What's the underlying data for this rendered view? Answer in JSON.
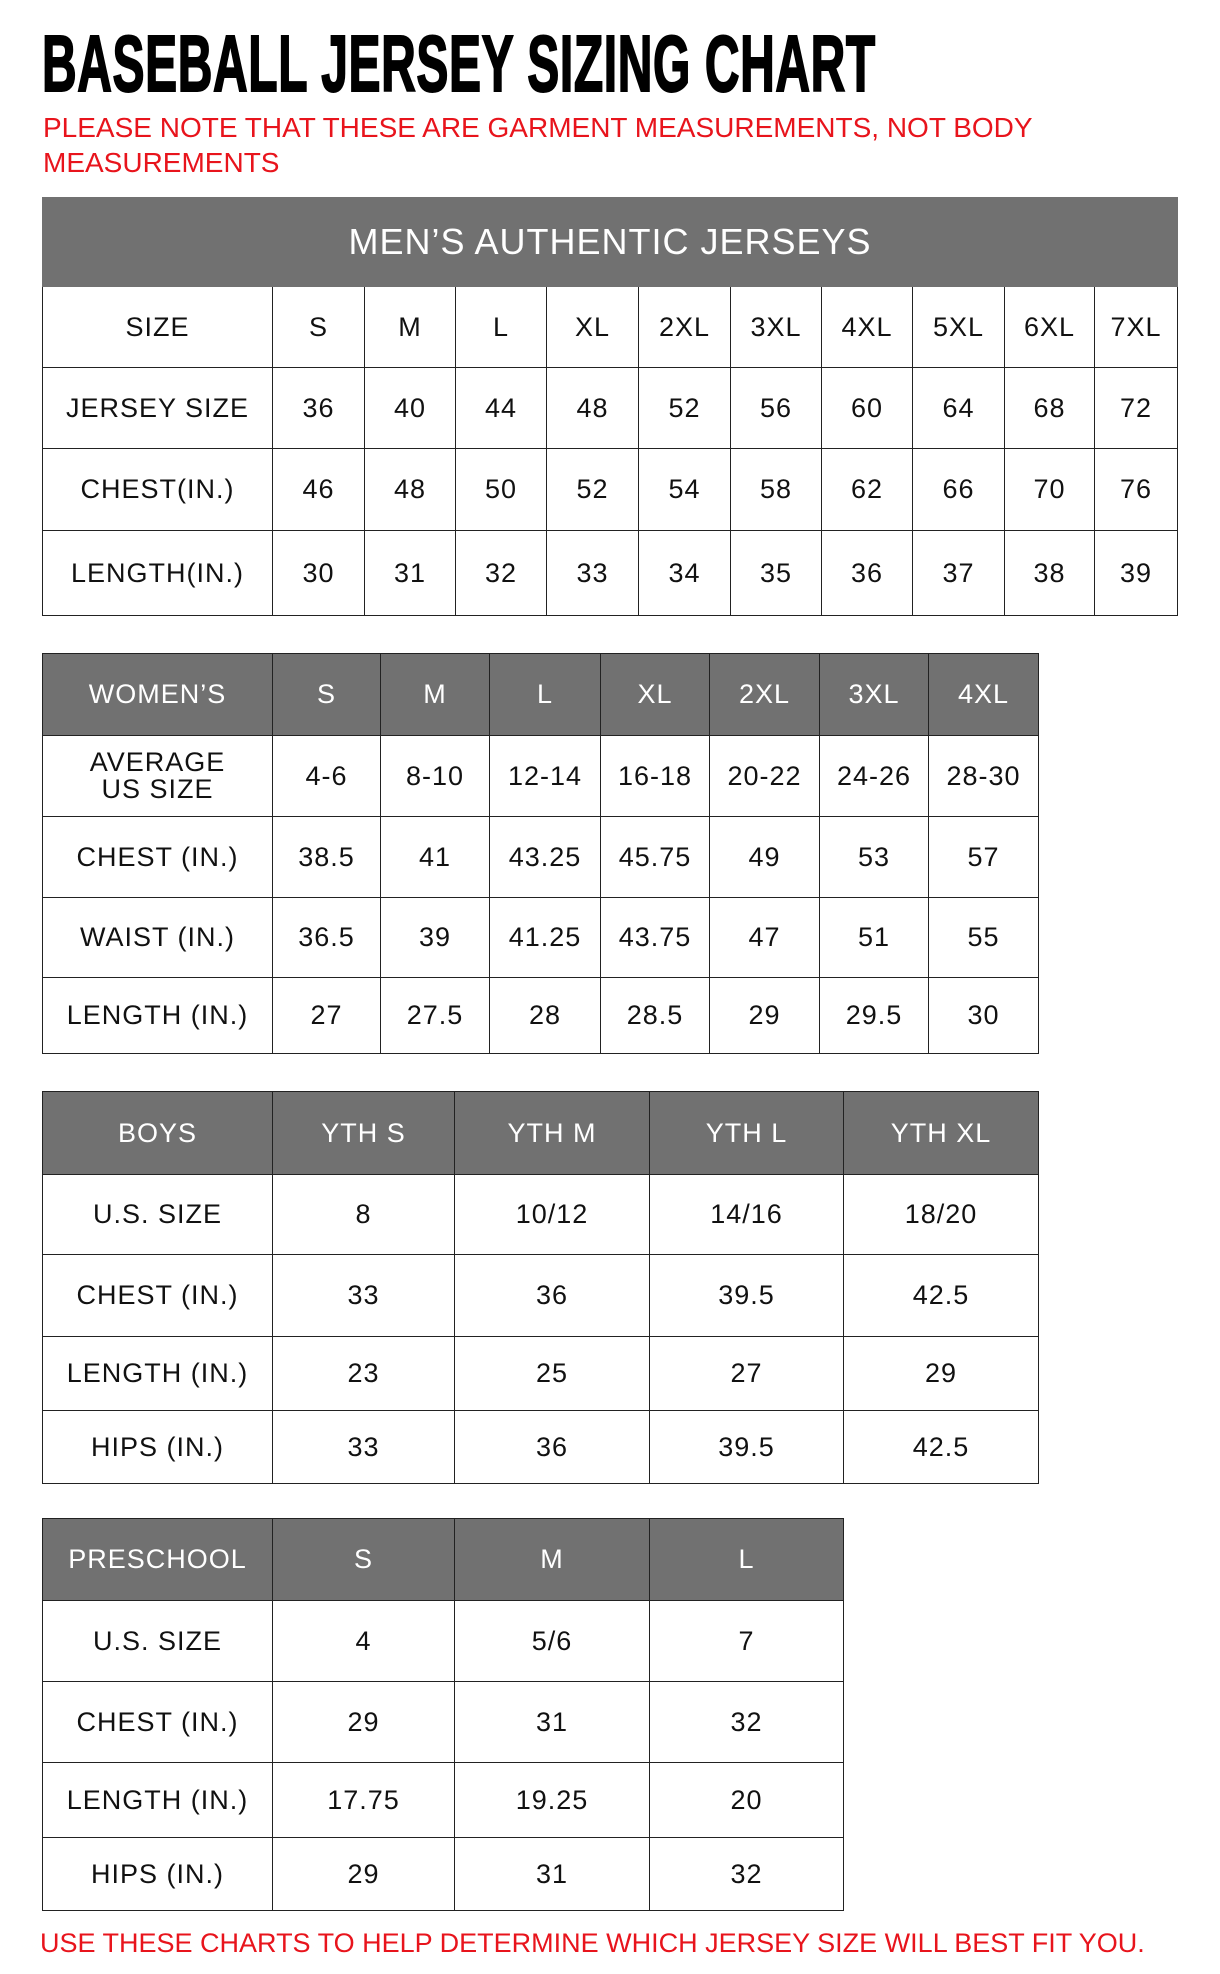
{
  "title": "BASEBALL JERSEY SIZING CHART",
  "note": "PLEASE NOTE THAT THESE ARE GARMENT MEASUREMENTS, NOT BODY MEASUREMENTS",
  "footer": "USE THESE CHARTS TO HELP DETERMINE WHICH JERSEY SIZE WILL BEST FIT YOU.",
  "colors": {
    "header_bg": "#717171",
    "note_red": "#e8141c"
  },
  "tables": [
    {
      "id": "mens",
      "title": "MEN’S AUTHENTIC JERSEYS",
      "header": [
        "SIZE",
        "S",
        "M",
        "L",
        "XL",
        "2XL",
        "3XL",
        "4XL",
        "5XL",
        "6XL",
        "7XL"
      ],
      "header_style": "plain",
      "rows": [
        [
          "JERSEY SIZE",
          "36",
          "40",
          "44",
          "48",
          "52",
          "56",
          "60",
          "64",
          "68",
          "72"
        ],
        [
          "CHEST(IN.)",
          "46",
          "48",
          "50",
          "52",
          "54",
          "58",
          "62",
          "66",
          "70",
          "76"
        ],
        [
          "LENGTH(IN.)",
          "30",
          "31",
          "32",
          "33",
          "34",
          "35",
          "36",
          "37",
          "38",
          "39"
        ]
      ]
    },
    {
      "id": "womens",
      "header": [
        "WOMEN’S",
        "S",
        "M",
        "L",
        "XL",
        "2XL",
        "3XL",
        "4XL"
      ],
      "header_style": "gray",
      "rows": [
        [
          "AVERAGE US SIZE",
          "4-6",
          "8-10",
          "12-14",
          "16-18",
          "20-22",
          "24-26",
          "28-30"
        ],
        [
          "CHEST (IN.)",
          "38.5",
          "41",
          "43.25",
          "45.75",
          "49",
          "53",
          "57"
        ],
        [
          "WAIST (IN.)",
          "36.5",
          "39",
          "41.25",
          "43.75",
          "47",
          "51",
          "55"
        ],
        [
          "LENGTH (IN.)",
          "27",
          "27.5",
          "28",
          "28.5",
          "29",
          "29.5",
          "30"
        ]
      ]
    },
    {
      "id": "boys",
      "header": [
        "BOYS",
        "YTH S",
        "YTH M",
        "YTH L",
        "YTH XL"
      ],
      "header_style": "gray",
      "rows": [
        [
          "U.S. SIZE",
          "8",
          "10/12",
          "14/16",
          "18/20"
        ],
        [
          "CHEST (IN.)",
          "33",
          "36",
          "39.5",
          "42.5"
        ],
        [
          "LENGTH (IN.)",
          "23",
          "25",
          "27",
          "29"
        ],
        [
          "HIPS (IN.)",
          "33",
          "36",
          "39.5",
          "42.5"
        ]
      ]
    },
    {
      "id": "preschool",
      "header": [
        "PRESCHOOL",
        "S",
        "M",
        "L"
      ],
      "header_style": "gray",
      "rows": [
        [
          "U.S. SIZE",
          "4",
          "5/6",
          "7"
        ],
        [
          "CHEST (IN.)",
          "29",
          "31",
          "32"
        ],
        [
          "LENGTH (IN.)",
          "17.75",
          "19.25",
          "20"
        ],
        [
          "HIPS (IN.)",
          "29",
          "31",
          "32"
        ]
      ]
    }
  ]
}
